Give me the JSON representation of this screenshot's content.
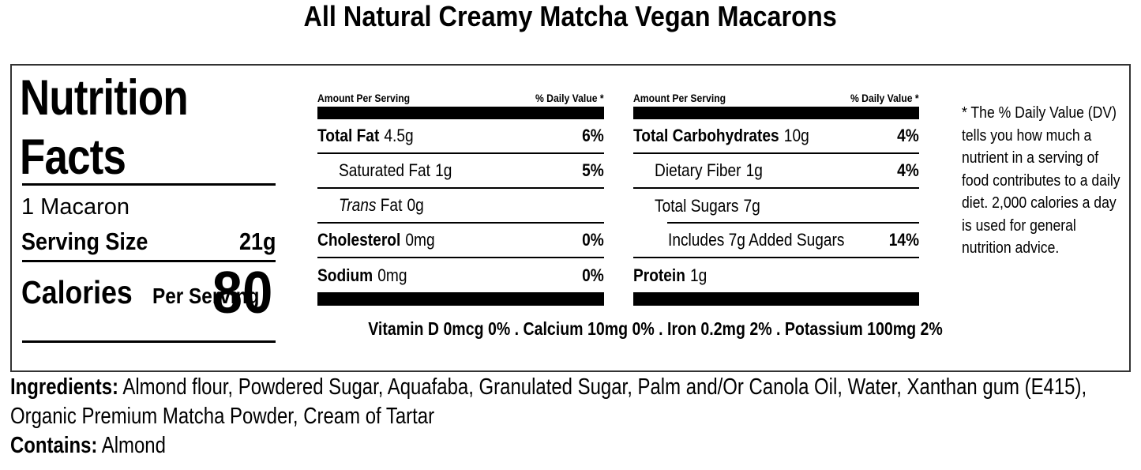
{
  "page": {
    "title": "All Natural Creamy Matcha Vegan Macarons"
  },
  "label": {
    "heading": {
      "line1": "Nutrition",
      "line2": "Facts"
    },
    "serving_unit": "1 Macaron",
    "serving_size": {
      "label": "Serving Size",
      "value": "21g"
    },
    "calories": {
      "label": "Calories",
      "sublabel": "Per Serving",
      "value": "80"
    },
    "columns": {
      "amount_header": "Amount Per Serving",
      "dv_header": "% Daily Value *"
    },
    "nutrients_left": [
      {
        "name": "Total Fat",
        "amount": "4.5g",
        "dv": "6%"
      },
      {
        "name": "Saturated Fat",
        "amount": "1g",
        "dv": "5%"
      },
      {
        "name_italic": "Trans",
        "name": "Fat",
        "amount": "0g",
        "dv": ""
      },
      {
        "name": "Cholesterol",
        "amount": "0mg",
        "dv": "0%"
      },
      {
        "name": "Sodium",
        "amount": "0mg",
        "dv": "0%"
      }
    ],
    "nutrients_right": [
      {
        "name": "Total Carbohydrates",
        "amount": "10g",
        "dv": "4%"
      },
      {
        "name": "Dietary Fiber",
        "amount": "1g",
        "dv": "4%"
      },
      {
        "name": "Total Sugars",
        "amount": "7g",
        "dv": ""
      },
      {
        "name": "Includes 7g Added Sugars",
        "amount": "",
        "dv": "14%"
      },
      {
        "name": "Protein",
        "amount": "1g",
        "dv": ""
      }
    ],
    "micronutrients": "Vitamin D 0mcg 0% . Calcium 10mg 0% . Iron 0.2mg 2% . Potassium 100mg 2%",
    "footnote": "* The % Daily Value (DV) tells you how much a nutrient in a serving of food contributes to a daily diet. 2,000 calories a day is used for general nutrition advice."
  },
  "ingredients": {
    "label": "Ingredients:",
    "line1": "Almond flour, Powdered Sugar, Aquafaba, Granulated Sugar, Palm and/Or Canola Oil, Water, Xanthan gum (E415),",
    "line2": "Organic Premium Matcha Powder, Cream of Tartar"
  },
  "contains": {
    "label": "Contains:",
    "value": "Almond"
  },
  "colors": {
    "text": "#000000",
    "border": "#333333",
    "background": "#ffffff",
    "bar": "#000000"
  }
}
